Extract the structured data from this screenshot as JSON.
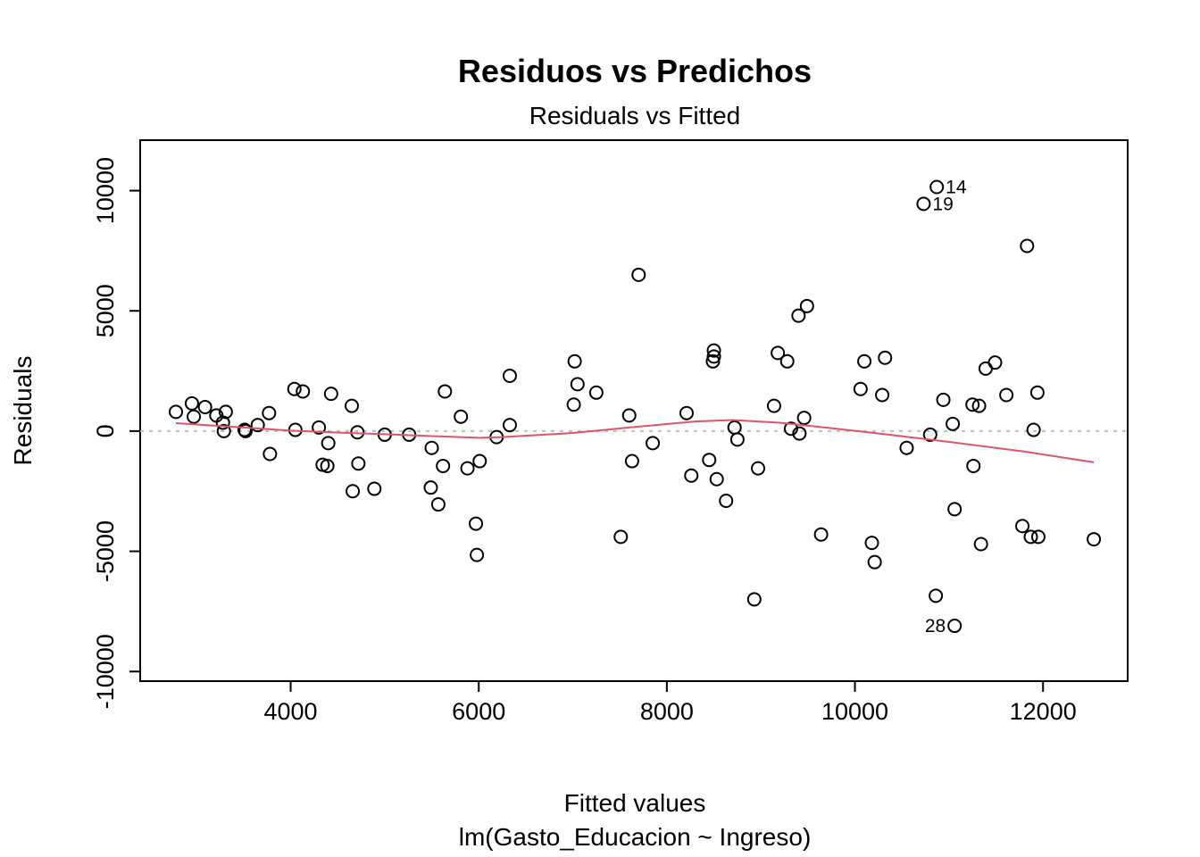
{
  "chart_data": {
    "type": "scatter",
    "title": "Residuos vs Predichos",
    "subtitle": "Residuals vs Fitted",
    "xlabel": "Fitted values",
    "xlabel2": "lm(Gasto_Educacion ~ Ingreso)",
    "ylabel": "Residuals",
    "xlim": [
      2400,
      12900
    ],
    "ylim": [
      -10400,
      12100
    ],
    "xticks": [
      4000,
      6000,
      8000,
      10000,
      12000
    ],
    "yticks": [
      -10000,
      -5000,
      0,
      5000,
      10000
    ],
    "reference_line_y": 0,
    "smooth_color": "#DF536B",
    "points": [
      {
        "x": 2780,
        "y": 800
      },
      {
        "x": 2950,
        "y": 1150
      },
      {
        "x": 2970,
        "y": 600
      },
      {
        "x": 3090,
        "y": 1000
      },
      {
        "x": 3210,
        "y": 650
      },
      {
        "x": 3280,
        "y": 350
      },
      {
        "x": 3290,
        "y": 0
      },
      {
        "x": 3310,
        "y": 800
      },
      {
        "x": 3510,
        "y": 50
      },
      {
        "x": 3520,
        "y": 0
      },
      {
        "x": 3650,
        "y": 250
      },
      {
        "x": 3770,
        "y": 750
      },
      {
        "x": 3780,
        "y": -950
      },
      {
        "x": 4040,
        "y": 1750
      },
      {
        "x": 4050,
        "y": 50
      },
      {
        "x": 4130,
        "y": 1650
      },
      {
        "x": 4300,
        "y": 150
      },
      {
        "x": 4340,
        "y": -1400
      },
      {
        "x": 4390,
        "y": -1450
      },
      {
        "x": 4400,
        "y": -500
      },
      {
        "x": 4430,
        "y": 1550
      },
      {
        "x": 4650,
        "y": 1050
      },
      {
        "x": 4660,
        "y": -2500
      },
      {
        "x": 4710,
        "y": -50
      },
      {
        "x": 4720,
        "y": -1350
      },
      {
        "x": 4890,
        "y": -2400
      },
      {
        "x": 5000,
        "y": -150
      },
      {
        "x": 5260,
        "y": -150
      },
      {
        "x": 5490,
        "y": -2350
      },
      {
        "x": 5500,
        "y": -700
      },
      {
        "x": 5570,
        "y": -3050
      },
      {
        "x": 5620,
        "y": -1450
      },
      {
        "x": 5640,
        "y": 1650
      },
      {
        "x": 5810,
        "y": 600
      },
      {
        "x": 5880,
        "y": -1550
      },
      {
        "x": 5970,
        "y": -3850
      },
      {
        "x": 5980,
        "y": -5150
      },
      {
        "x": 6010,
        "y": -1250
      },
      {
        "x": 6190,
        "y": -250
      },
      {
        "x": 6330,
        "y": 250
      },
      {
        "x": 6330,
        "y": 2300
      },
      {
        "x": 7010,
        "y": 1100
      },
      {
        "x": 7020,
        "y": 2900
      },
      {
        "x": 7050,
        "y": 1950
      },
      {
        "x": 7250,
        "y": 1600
      },
      {
        "x": 7510,
        "y": -4400
      },
      {
        "x": 7600,
        "y": 650
      },
      {
        "x": 7630,
        "y": -1250
      },
      {
        "x": 7700,
        "y": 6500
      },
      {
        "x": 7850,
        "y": -500
      },
      {
        "x": 8210,
        "y": 750
      },
      {
        "x": 8260,
        "y": -1850
      },
      {
        "x": 8450,
        "y": -1200
      },
      {
        "x": 8490,
        "y": 2900
      },
      {
        "x": 8500,
        "y": 3350
      },
      {
        "x": 8500,
        "y": 3100
      },
      {
        "x": 8530,
        "y": -2000
      },
      {
        "x": 8630,
        "y": -2900
      },
      {
        "x": 8720,
        "y": 150
      },
      {
        "x": 8750,
        "y": -350
      },
      {
        "x": 8930,
        "y": -7000
      },
      {
        "x": 8970,
        "y": -1550
      },
      {
        "x": 9140,
        "y": 1050
      },
      {
        "x": 9180,
        "y": 3250
      },
      {
        "x": 9280,
        "y": 2900
      },
      {
        "x": 9320,
        "y": 100
      },
      {
        "x": 9400,
        "y": 4800
      },
      {
        "x": 9410,
        "y": -100
      },
      {
        "x": 9460,
        "y": 550
      },
      {
        "x": 9490,
        "y": 5200
      },
      {
        "x": 9640,
        "y": -4300
      },
      {
        "x": 10060,
        "y": 1750
      },
      {
        "x": 10100,
        "y": 2900
      },
      {
        "x": 10180,
        "y": -4650
      },
      {
        "x": 10210,
        "y": -5450
      },
      {
        "x": 10290,
        "y": 1500
      },
      {
        "x": 10320,
        "y": 3050
      },
      {
        "x": 10550,
        "y": -700
      },
      {
        "x": 10730,
        "y": 9450
      },
      {
        "x": 10800,
        "y": -150
      },
      {
        "x": 10860,
        "y": -6850
      },
      {
        "x": 10870,
        "y": 10150
      },
      {
        "x": 10940,
        "y": 1300
      },
      {
        "x": 11040,
        "y": 300
      },
      {
        "x": 11060,
        "y": -3250
      },
      {
        "x": 11060,
        "y": -8100
      },
      {
        "x": 11250,
        "y": 1100
      },
      {
        "x": 11260,
        "y": -1450
      },
      {
        "x": 11320,
        "y": 1050
      },
      {
        "x": 11340,
        "y": -4700
      },
      {
        "x": 11390,
        "y": 2600
      },
      {
        "x": 11490,
        "y": 2850
      },
      {
        "x": 11610,
        "y": 1500
      },
      {
        "x": 11780,
        "y": -3950
      },
      {
        "x": 11830,
        "y": 7700
      },
      {
        "x": 11870,
        "y": -4400
      },
      {
        "x": 11900,
        "y": 50
      },
      {
        "x": 11940,
        "y": 1600
      },
      {
        "x": 11950,
        "y": -4400
      },
      {
        "x": 12540,
        "y": -4500
      }
    ],
    "labeled_points": [
      {
        "x": 10870,
        "y": 10150,
        "label": "14",
        "side": "right"
      },
      {
        "x": 10730,
        "y": 9450,
        "label": "19",
        "side": "right"
      },
      {
        "x": 11060,
        "y": -8100,
        "label": "28",
        "side": "left"
      }
    ],
    "smooth": [
      {
        "x": 2780,
        "y": 330
      },
      {
        "x": 3500,
        "y": 150
      },
      {
        "x": 4000,
        "y": 20
      },
      {
        "x": 4500,
        "y": -60
      },
      {
        "x": 5000,
        "y": -130
      },
      {
        "x": 5500,
        "y": -210
      },
      {
        "x": 6000,
        "y": -280
      },
      {
        "x": 6250,
        "y": -250
      },
      {
        "x": 7000,
        "y": -80
      },
      {
        "x": 7600,
        "y": 150
      },
      {
        "x": 8300,
        "y": 400
      },
      {
        "x": 8700,
        "y": 460
      },
      {
        "x": 9200,
        "y": 350
      },
      {
        "x": 9800,
        "y": 100
      },
      {
        "x": 10300,
        "y": -120
      },
      {
        "x": 11000,
        "y": -450
      },
      {
        "x": 11800,
        "y": -850
      },
      {
        "x": 12540,
        "y": -1300
      }
    ]
  }
}
